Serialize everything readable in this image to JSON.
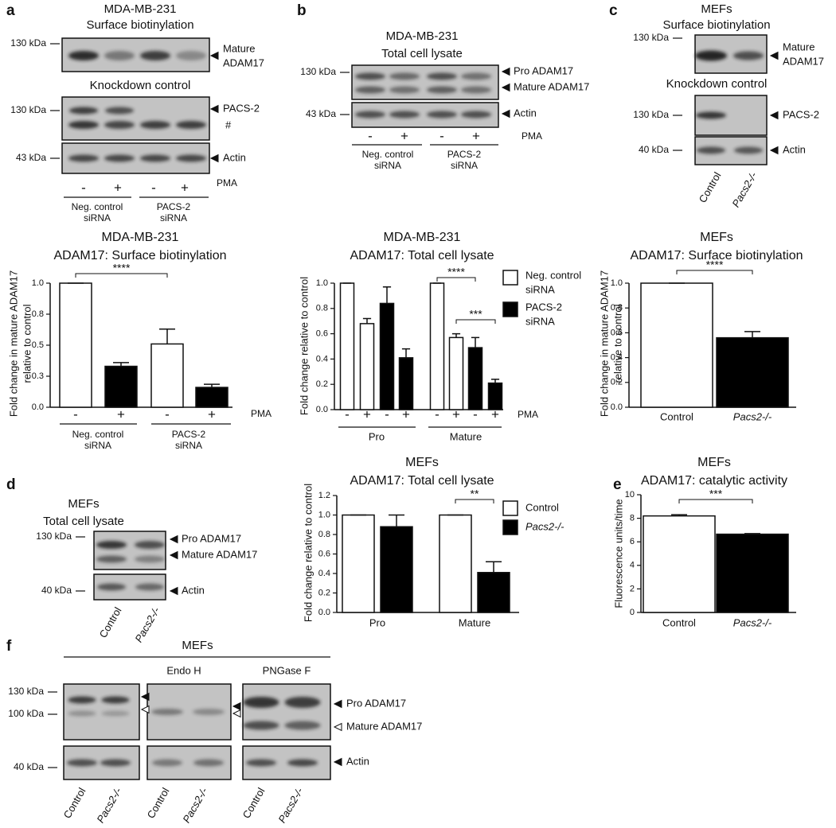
{
  "panel_labels": [
    "a",
    "b",
    "c",
    "d",
    "e",
    "f"
  ],
  "blots": {
    "a": {
      "title": [
        "MDA-MB-231",
        "Surface biotinylation"
      ],
      "subtitle": "Knockdown control",
      "markers": [
        "130 kDa",
        "130 kDa",
        "43 kDa"
      ],
      "bands": [
        [
          "Mature",
          "ADAM17"
        ],
        "PACS-2",
        "#",
        "Actin"
      ],
      "lanes": [
        "-",
        "+",
        "-",
        "+"
      ],
      "treatment": "PMA",
      "groups": [
        [
          "Neg. control",
          "siRNA"
        ],
        [
          "PACS-2",
          "siRNA"
        ]
      ]
    },
    "b": {
      "title": [
        "MDA-MB-231",
        "Total cell lysate"
      ],
      "markers": [
        "130 kDa",
        "43 kDa"
      ],
      "bands": [
        "Pro ADAM17",
        "Mature ADAM17",
        "Actin"
      ],
      "lanes": [
        "-",
        "+",
        "-",
        "+"
      ],
      "treatment": "PMA",
      "groups": [
        [
          "Neg. control",
          "siRNA"
        ],
        [
          "PACS-2",
          "siRNA"
        ]
      ]
    },
    "c": {
      "title": [
        "MEFs",
        "Surface biotinylation"
      ],
      "subtitle": "Knockdown control",
      "markers": [
        "130 kDa",
        "130 kDa",
        "40 kDa"
      ],
      "bands": [
        [
          "Mature",
          "ADAM17"
        ],
        "PACS-2",
        "Actin"
      ],
      "lanes": [
        "Control",
        "Pacs2-/-"
      ]
    },
    "d": {
      "title": [
        "MEFs",
        "Total cell lysate"
      ],
      "markers": [
        "130 kDa",
        "40 kDa"
      ],
      "bands": [
        "Pro ADAM17",
        "Mature ADAM17",
        "Actin"
      ],
      "lanes": [
        "Control",
        "Pacs2-/-"
      ]
    },
    "f": {
      "title": "MEFs",
      "treatments": [
        "Endo H",
        "PNGase F"
      ],
      "markers": [
        "130 kDa",
        "100 kDa",
        "40 kDa"
      ],
      "bands": [
        "Pro ADAM17",
        "Mature ADAM17",
        "Actin"
      ],
      "lanes": [
        "Control",
        "Pacs2-/-"
      ]
    }
  },
  "chart_data": [
    {
      "type": "bar",
      "title": [
        "MDA-MB-231",
        "ADAM17: Surface biotinylation"
      ],
      "y_label": [
        "Fold change in mature ADAM17",
        "relative to control"
      ],
      "categories": [
        "-",
        "+",
        "-",
        "+"
      ],
      "x_label": "PMA",
      "groups": [
        [
          "Neg. control",
          "siRNA"
        ],
        [
          "PACS-2",
          "siRNA"
        ]
      ],
      "values": [
        1.0,
        0.33,
        0.51,
        0.16
      ],
      "errors": [
        0,
        0.03,
        0.12,
        0.025
      ],
      "colors": [
        "#ffffff",
        "#000000",
        "#ffffff",
        "#000000"
      ],
      "ylim": [
        0,
        1
      ],
      "yticks": [
        {
          "value": 0,
          "label": "0.0"
        },
        {
          "value": 0.25,
          "label": "0.3"
        },
        0.5,
        {
          "value": 0.75,
          "label": "0.8"
        },
        {
          "value": 1,
          "label": "1.0"
        }
      ],
      "annotations": [
        "****"
      ]
    },
    {
      "type": "grouped_bar",
      "title": [
        "MDA-MB-231",
        "ADAM17: Total cell lysate"
      ],
      "y_label": "Fold change relative to control",
      "categories": [
        "-",
        "+",
        "-",
        "+",
        "-",
        "+",
        "-",
        "+"
      ],
      "x_label": "PMA",
      "groups": [
        "Pro",
        "Mature"
      ],
      "series": [
        {
          "name": [
            "Neg. control",
            "siRNA"
          ],
          "color": "#ffffff",
          "values": [
            1.0,
            0.68,
            null,
            null,
            1.0,
            0.57,
            null,
            null
          ],
          "errors": [
            0,
            0.04,
            null,
            null,
            0,
            0.03,
            null,
            null
          ]
        },
        {
          "name": [
            "PACS-2",
            "siRNA"
          ],
          "color": "#000000",
          "values": [
            null,
            null,
            0.84,
            0.41,
            null,
            null,
            0.49,
            0.21
          ],
          "errors": [
            null,
            null,
            0.13,
            0.07,
            null,
            null,
            0.08,
            0.03
          ]
        }
      ],
      "ylim": [
        0,
        1
      ],
      "yticks": [
        {
          "value": 0,
          "label": "0.0"
        },
        0.2,
        0.4,
        0.6,
        0.8,
        {
          "value": 1,
          "label": "1.0"
        }
      ],
      "annotations": [
        "****",
        "***"
      ]
    },
    {
      "type": "bar",
      "title": [
        "MEFs",
        "ADAM17: Surface biotinylation"
      ],
      "y_label": [
        "Fold change in mature ADAM17",
        "relative to control"
      ],
      "categories": [
        "Control",
        "Pacs2-/-"
      ],
      "values": [
        1.0,
        0.56
      ],
      "errors": [
        0,
        0.05
      ],
      "colors": [
        "#ffffff",
        "#000000"
      ],
      "ylim": [
        0,
        1
      ],
      "yticks": [
        {
          "value": 0,
          "label": "0.0"
        },
        0.2,
        0.4,
        0.6,
        0.8,
        {
          "value": 1,
          "label": "1.0"
        }
      ],
      "annotations": [
        "****"
      ]
    },
    {
      "type": "grouped_bar",
      "title": [
        "MEFs",
        "ADAM17: Total cell lysate"
      ],
      "y_label": "Fold change relative to control",
      "categories": [
        "Pro",
        "Mature"
      ],
      "series": [
        {
          "name": "Control",
          "color": "#ffffff",
          "values": [
            1.0,
            1.0
          ],
          "errors": [
            0,
            0
          ]
        },
        {
          "name": "Pacs2-/-",
          "color": "#000000",
          "values": [
            0.88,
            0.41
          ],
          "errors": [
            0.12,
            0.11
          ]
        }
      ],
      "ylim": [
        0,
        1.2
      ],
      "yticks": [
        {
          "value": 0,
          "label": "0.0"
        },
        0.2,
        0.4,
        0.6,
        0.8,
        {
          "value": 1,
          "label": "1.0"
        },
        1.2
      ],
      "annotations": [
        "**"
      ]
    },
    {
      "type": "bar",
      "title": [
        "MEFs",
        "ADAM17: catalytic activity"
      ],
      "y_label": "Fluorescence units/time",
      "categories": [
        "Control",
        "Pacs2-/-"
      ],
      "values": [
        8.2,
        6.65
      ],
      "errors": [
        0.1,
        0.05
      ],
      "colors": [
        "#ffffff",
        "#000000"
      ],
      "ylim": [
        0,
        10
      ],
      "yticks": [
        0,
        2,
        4,
        6,
        8,
        10
      ],
      "annotations": [
        "***"
      ]
    }
  ]
}
